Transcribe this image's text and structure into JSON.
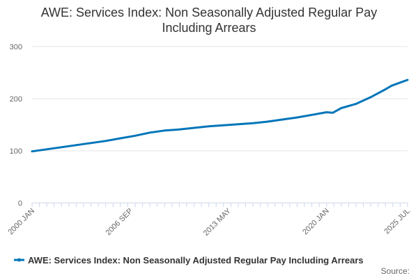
{
  "chart_data": {
    "type": "line",
    "title_lines": [
      "AWE: Services Index: Non Seasonally Adjusted Regular Pay",
      "Including Arrears"
    ],
    "xlabel": "",
    "ylabel": "",
    "ylim": [
      0,
      300
    ],
    "yticks": [
      "0",
      "100",
      "200",
      "300"
    ],
    "xlim": [
      "2000-01",
      "2025-07"
    ],
    "xtick_labels": [
      {
        "label": "2000 JAN",
        "date": "2000-01"
      },
      {
        "label": "2006 SEP",
        "date": "2006-09"
      },
      {
        "label": "2013 MAY",
        "date": "2013-05"
      },
      {
        "label": "2020 JAN",
        "date": "2020-01"
      },
      {
        "label": "2025 JUL",
        "date": "2025-07"
      }
    ],
    "grid": true,
    "legend_placement": "bottom",
    "series": [
      {
        "name": "AWE: Services Index: Non Seasonally Adjusted Regular Pay Including Arrears",
        "color": "#0075b9",
        "points": [
          [
            "2000-01",
            99
          ],
          [
            "2001-01",
            103
          ],
          [
            "2002-01",
            107
          ],
          [
            "2003-01",
            111
          ],
          [
            "2004-01",
            115
          ],
          [
            "2005-01",
            119
          ],
          [
            "2006-01",
            124
          ],
          [
            "2007-01",
            129
          ],
          [
            "2008-01",
            135
          ],
          [
            "2009-01",
            139
          ],
          [
            "2010-01",
            141
          ],
          [
            "2011-01",
            144
          ],
          [
            "2012-01",
            147
          ],
          [
            "2013-01",
            149
          ],
          [
            "2014-01",
            151
          ],
          [
            "2015-01",
            153
          ],
          [
            "2016-01",
            156
          ],
          [
            "2017-01",
            160
          ],
          [
            "2018-01",
            164
          ],
          [
            "2019-01",
            169
          ],
          [
            "2020-01",
            174
          ],
          [
            "2020-06",
            173
          ],
          [
            "2021-01",
            182
          ],
          [
            "2022-01",
            190
          ],
          [
            "2023-01",
            203
          ],
          [
            "2024-01",
            218
          ],
          [
            "2024-06",
            225
          ],
          [
            "2025-01",
            231
          ],
          [
            "2025-07",
            236
          ]
        ]
      }
    ],
    "source_label": "Source:"
  }
}
